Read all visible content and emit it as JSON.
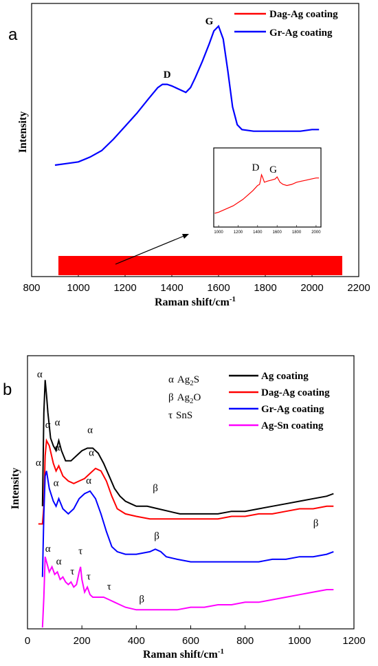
{
  "chart_data": [
    {
      "type": "line",
      "panel_label": "a",
      "xlabel": "Raman shift/cm",
      "xlabel_sup": "-1",
      "ylabel": "Intensity",
      "xlim": [
        800,
        2200
      ],
      "xticks": [
        "800",
        "1000",
        "1200",
        "1400",
        "1600",
        "1800",
        "2000",
        "2200"
      ],
      "series": [
        {
          "name": "Dag-Ag coating",
          "color": "#ff0000",
          "values": []
        },
        {
          "name": "Gr-Ag coating",
          "color": "#0000ff",
          "x": [
            900,
            950,
            1000,
            1050,
            1100,
            1150,
            1200,
            1250,
            1300,
            1340,
            1360,
            1380,
            1400,
            1430,
            1460,
            1480,
            1500,
            1530,
            1560,
            1580,
            1600,
            1620,
            1640,
            1660,
            1680,
            1700,
            1750,
            1800,
            1850,
            1900,
            1950,
            2000,
            2030
          ],
          "y": [
            0.12,
            0.13,
            0.14,
            0.17,
            0.21,
            0.28,
            0.36,
            0.44,
            0.53,
            0.6,
            0.62,
            0.62,
            0.61,
            0.59,
            0.57,
            0.6,
            0.66,
            0.76,
            0.87,
            0.95,
            0.98,
            0.9,
            0.7,
            0.48,
            0.37,
            0.34,
            0.33,
            0.33,
            0.33,
            0.33,
            0.33,
            0.34,
            0.34
          ]
        }
      ],
      "annotations": [
        {
          "text": "D",
          "x": 1380,
          "y": 0.66
        },
        {
          "text": "G",
          "x": 1560,
          "y": 0.99
        }
      ],
      "inset": {
        "xticks": [
          "1000",
          "1200",
          "1400",
          "1600",
          "1800",
          "2000"
        ],
        "xlim": [
          950,
          2050
        ],
        "series": [
          {
            "name": "Dag-Ag coating",
            "color": "#ff0000",
            "x": [
              960,
              1000,
              1050,
              1100,
              1150,
              1200,
              1250,
              1300,
              1350,
              1380,
              1400,
              1420,
              1430,
              1440,
              1450,
              1470,
              1500,
              1540,
              1580,
              1600,
              1630,
              1660,
              1700,
              1750,
              1800,
              1850,
              1900,
              1950,
              2000,
              2030
            ],
            "y": [
              0.08,
              0.1,
              0.14,
              0.18,
              0.22,
              0.28,
              0.34,
              0.42,
              0.5,
              0.56,
              0.6,
              0.62,
              0.7,
              0.8,
              0.76,
              0.66,
              0.68,
              0.7,
              0.72,
              0.76,
              0.66,
              0.62,
              0.6,
              0.62,
              0.66,
              0.68,
              0.7,
              0.72,
              0.74,
              0.74
            ]
          }
        ],
        "annotations": [
          {
            "text": "D",
            "x": 1380,
            "y": 0.88
          },
          {
            "text": "G",
            "x": 1560,
            "y": 0.84
          }
        ]
      }
    },
    {
      "type": "line",
      "panel_label": "b",
      "xlabel": "Raman shift/cm",
      "xlabel_sup": "-1",
      "ylabel": "Intensity",
      "xlim": [
        0,
        1200
      ],
      "xticks": [
        "0",
        "200",
        "400",
        "600",
        "800",
        "1000",
        "1200"
      ],
      "phase_legend": [
        {
          "symbol": "α",
          "formula": "Ag",
          "sub": "2",
          "rest": "S"
        },
        {
          "symbol": "β",
          "formula": "Ag",
          "sub": "2",
          "rest": "O"
        },
        {
          "symbol": "τ",
          "formula": "SnS",
          "sub": "",
          "rest": ""
        }
      ],
      "series": [
        {
          "name": "Ag coating",
          "color": "#000000",
          "x": [
            55,
            60,
            65,
            70,
            75,
            85,
            95,
            105,
            115,
            125,
            140,
            160,
            180,
            200,
            220,
            240,
            260,
            280,
            300,
            320,
            340,
            360,
            380,
            400,
            440,
            480,
            520,
            560,
            600,
            650,
            700,
            750,
            800,
            850,
            900,
            950,
            1000,
            1050,
            1100,
            1125
          ],
          "y": [
            0.48,
            0.85,
            0.98,
            0.92,
            0.85,
            0.75,
            0.72,
            0.7,
            0.74,
            0.7,
            0.66,
            0.66,
            0.68,
            0.7,
            0.71,
            0.71,
            0.69,
            0.65,
            0.6,
            0.55,
            0.52,
            0.5,
            0.49,
            0.48,
            0.48,
            0.47,
            0.46,
            0.45,
            0.45,
            0.45,
            0.45,
            0.46,
            0.46,
            0.47,
            0.48,
            0.49,
            0.5,
            0.51,
            0.52,
            0.53
          ]
        },
        {
          "name": "Dag-Ag coating",
          "color": "#ff0000",
          "x": [
            40,
            55,
            60,
            65,
            70,
            80,
            95,
            105,
            115,
            130,
            150,
            170,
            190,
            210,
            230,
            250,
            270,
            290,
            310,
            330,
            360,
            400,
            450,
            500,
            550,
            600,
            650,
            700,
            750,
            800,
            850,
            900,
            950,
            1000,
            1050,
            1100,
            1125
          ],
          "y": [
            0.41,
            0.41,
            0.48,
            0.68,
            0.74,
            0.72,
            0.65,
            0.62,
            0.64,
            0.6,
            0.58,
            0.57,
            0.58,
            0.59,
            0.61,
            0.63,
            0.62,
            0.58,
            0.52,
            0.47,
            0.45,
            0.44,
            0.43,
            0.43,
            0.43,
            0.43,
            0.43,
            0.43,
            0.44,
            0.44,
            0.45,
            0.45,
            0.46,
            0.47,
            0.47,
            0.48,
            0.48
          ]
        },
        {
          "name": "Gr-Ag coating",
          "color": "#0000ff",
          "x": [
            55,
            60,
            65,
            70,
            80,
            95,
            105,
            115,
            130,
            150,
            170,
            190,
            210,
            230,
            250,
            270,
            290,
            310,
            330,
            360,
            400,
            450,
            470,
            490,
            510,
            550,
            600,
            650,
            700,
            750,
            800,
            850,
            900,
            950,
            1000,
            1050,
            1100,
            1125
          ],
          "y": [
            0.2,
            0.45,
            0.6,
            0.62,
            0.55,
            0.5,
            0.48,
            0.51,
            0.47,
            0.45,
            0.47,
            0.51,
            0.53,
            0.54,
            0.51,
            0.45,
            0.38,
            0.32,
            0.3,
            0.29,
            0.29,
            0.3,
            0.31,
            0.3,
            0.28,
            0.27,
            0.26,
            0.26,
            0.26,
            0.26,
            0.26,
            0.26,
            0.27,
            0.27,
            0.28,
            0.28,
            0.29,
            0.3
          ]
        },
        {
          "name": "Ag-Sn coating",
          "color": "#ff00ff",
          "x": [
            55,
            60,
            65,
            70,
            80,
            90,
            100,
            110,
            120,
            130,
            140,
            150,
            160,
            170,
            180,
            190,
            195,
            200,
            210,
            220,
            230,
            240,
            260,
            280,
            300,
            320,
            340,
            360,
            400,
            450,
            500,
            550,
            600,
            650,
            700,
            750,
            800,
            850,
            900,
            950,
            1000,
            1050,
            1100,
            1125
          ],
          "y": [
            0.0,
            0.12,
            0.28,
            0.26,
            0.22,
            0.24,
            0.21,
            0.22,
            0.19,
            0.2,
            0.18,
            0.17,
            0.18,
            0.16,
            0.17,
            0.22,
            0.24,
            0.19,
            0.14,
            0.16,
            0.13,
            0.12,
            0.12,
            0.12,
            0.11,
            0.1,
            0.09,
            0.08,
            0.07,
            0.07,
            0.07,
            0.07,
            0.08,
            0.08,
            0.09,
            0.09,
            0.1,
            0.1,
            0.11,
            0.12,
            0.13,
            0.14,
            0.15,
            0.15
          ]
        }
      ],
      "annotations": [
        {
          "text": "α",
          "x": 45,
          "y": 0.99
        },
        {
          "text": "α",
          "x": 110,
          "y": 0.8
        },
        {
          "text": "α",
          "x": 230,
          "y": 0.77
        },
        {
          "text": "β",
          "x": 470,
          "y": 0.54
        },
        {
          "text": "α",
          "x": 75,
          "y": 0.79
        },
        {
          "text": "α",
          "x": 110,
          "y": 0.7
        },
        {
          "text": "α",
          "x": 235,
          "y": 0.68
        },
        {
          "text": "β",
          "x": 1060,
          "y": 0.4
        },
        {
          "text": "α",
          "x": 40,
          "y": 0.64
        },
        {
          "text": "α",
          "x": 105,
          "y": 0.56
        },
        {
          "text": "α",
          "x": 225,
          "y": 0.57
        },
        {
          "text": "β",
          "x": 475,
          "y": 0.35
        },
        {
          "text": "α",
          "x": 75,
          "y": 0.3
        },
        {
          "text": "α",
          "x": 115,
          "y": 0.25
        },
        {
          "text": "τ",
          "x": 165,
          "y": 0.21
        },
        {
          "text": "τ",
          "x": 195,
          "y": 0.29
        },
        {
          "text": "τ",
          "x": 225,
          "y": 0.19
        },
        {
          "text": "τ",
          "x": 300,
          "y": 0.15
        },
        {
          "text": "β",
          "x": 420,
          "y": 0.1
        }
      ]
    }
  ]
}
